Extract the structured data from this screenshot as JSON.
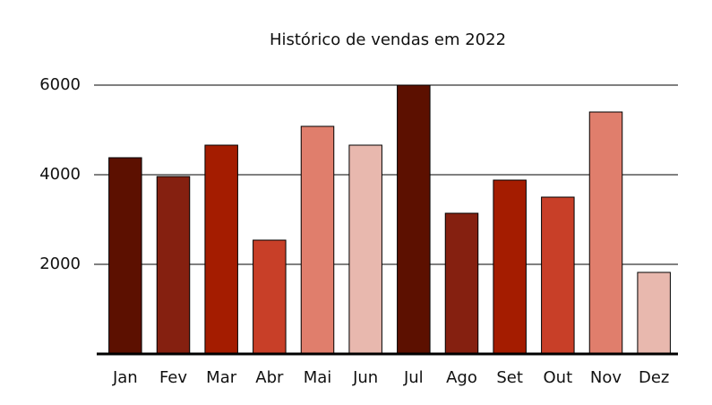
{
  "chart_data": {
    "type": "bar",
    "title": "Histórico de vendas em 2022",
    "categories": [
      "Jan",
      "Fev",
      "Mar",
      "Abr",
      "Mai",
      "Jun",
      "Jul",
      "Ago",
      "Set",
      "Out",
      "Nov",
      "Dez"
    ],
    "values": [
      4380,
      3960,
      4660,
      2540,
      5080,
      4660,
      6000,
      3140,
      3880,
      3500,
      5400,
      1820
    ],
    "colors": [
      "#5c1000",
      "#852010",
      "#a41c00",
      "#c83f28",
      "#e07e6c",
      "#e8b8ae",
      "#5c1000",
      "#852010",
      "#a41c00",
      "#c83f28",
      "#e07e6c",
      "#e8b8ae"
    ],
    "ylim": [
      0,
      6000
    ],
    "yticks": [
      2000,
      4000,
      6000
    ],
    "grid": true
  }
}
